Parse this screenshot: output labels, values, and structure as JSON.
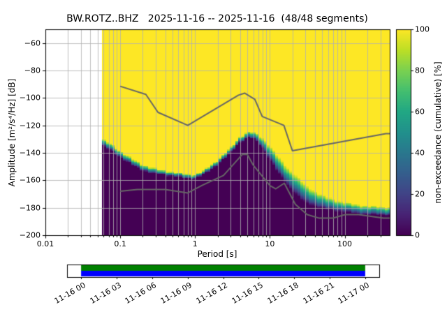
{
  "title": "BW.ROTZ..BHZ   2025-11-16 -- 2025-11-16  (48/48 segments)",
  "axes": {
    "xlabel": "Period [s]",
    "ylabel": "Amplitude [m²/s⁴/Hz] [dB]",
    "grid_color": "#b0b0b0",
    "x_ticks": [
      {
        "value": 0.01,
        "label": "0.01"
      },
      {
        "value": 0.1,
        "label": "0.1"
      },
      {
        "value": 1,
        "label": "1"
      },
      {
        "value": 10,
        "label": "10"
      },
      {
        "value": 100,
        "label": "100"
      }
    ],
    "y_ticks": [
      {
        "v": -200,
        "label": "−200"
      },
      {
        "v": -180,
        "label": "−180"
      },
      {
        "v": -160,
        "label": "−160"
      },
      {
        "v": -140,
        "label": "−140"
      },
      {
        "v": -120,
        "label": "−120"
      },
      {
        "v": -100,
        "label": "−100"
      },
      {
        "v": -80,
        "label": "−80"
      },
      {
        "v": -60,
        "label": "−60"
      }
    ]
  },
  "colorbar": {
    "label": "non-exceedance (cumulative) [%]",
    "ticks": [
      0,
      20,
      40,
      60,
      80,
      100
    ],
    "colormap": "viridis",
    "stops": [
      [
        0.0,
        "#440154"
      ],
      [
        0.1,
        "#482475"
      ],
      [
        0.2,
        "#414487"
      ],
      [
        0.3,
        "#355f8d"
      ],
      [
        0.4,
        "#2a788e"
      ],
      [
        0.5,
        "#21918c"
      ],
      [
        0.6,
        "#22a884"
      ],
      [
        0.7,
        "#44bf70"
      ],
      [
        0.8,
        "#7ad151"
      ],
      [
        0.9,
        "#bddf26"
      ],
      [
        1.0,
        "#fde725"
      ]
    ]
  },
  "timeline": {
    "labels": [
      "11-16 00",
      "11-16 03",
      "11-16 06",
      "11-16 09",
      "11-16 12",
      "11-16 15",
      "11-16 18",
      "11-16 21",
      "11-17 00"
    ],
    "coverage_fraction": [
      0.045,
      0.955
    ],
    "colors": {
      "top": "#008000",
      "bottom": "#0000ff"
    }
  },
  "chart_data": {
    "type": "heatmap",
    "mode": "PPSD cumulative non-exceedance percentage; yellow = 100%, dark purple = 0%",
    "title": "BW.ROTZ..BHZ   2025-11-16 -- 2025-11-16  (48/48 segments)",
    "xlabel": "Period [s]",
    "ylabel": "Amplitude [m²/s⁴/Hz] [dB]",
    "xscale": "log",
    "xlim": [
      0.01,
      400
    ],
    "ylim": [
      -200,
      -50
    ],
    "colorbar_label": "non-exceedance (cumulative) [%]",
    "colorbar_range": [
      0,
      100
    ],
    "data_period_min_s": 0.057,
    "psd_mode_curve_db": [
      [
        0.057,
        -132.5
      ],
      [
        0.08,
        -137
      ],
      [
        0.1,
        -141
      ],
      [
        0.15,
        -147
      ],
      [
        0.2,
        -150.5
      ],
      [
        0.3,
        -153.5
      ],
      [
        0.5,
        -155.5
      ],
      [
        0.8,
        -157.5
      ],
      [
        1.0,
        -157.5
      ],
      [
        1.3,
        -154.5
      ],
      [
        2,
        -147
      ],
      [
        3,
        -138.5
      ],
      [
        4,
        -130.5
      ],
      [
        5,
        -127
      ],
      [
        6,
        -127.5
      ],
      [
        8,
        -133
      ],
      [
        10,
        -140
      ],
      [
        13,
        -149
      ],
      [
        16,
        -155
      ],
      [
        20,
        -161
      ],
      [
        30,
        -170
      ],
      [
        45,
        -174.5
      ],
      [
        60,
        -177
      ],
      [
        80,
        -178.5
      ],
      [
        100,
        -179.5
      ],
      [
        150,
        -181
      ],
      [
        250,
        -182
      ],
      [
        400,
        -182.5
      ]
    ],
    "transition_width_db": [
      [
        0.057,
        5
      ],
      [
        0.3,
        4
      ],
      [
        1,
        3
      ],
      [
        2,
        3.5
      ],
      [
        4,
        4
      ],
      [
        6,
        5
      ],
      [
        8,
        7
      ],
      [
        10,
        10
      ],
      [
        15,
        13
      ],
      [
        25,
        14
      ],
      [
        40,
        11
      ],
      [
        70,
        8
      ],
      [
        100,
        7
      ],
      [
        400,
        6
      ]
    ],
    "noise_models": {
      "upper_name": "NHNM",
      "lower_name": "NLNM",
      "color": "#666666",
      "nhnm": [
        [
          0.1,
          -91.5
        ],
        [
          0.22,
          -97.4
        ],
        [
          0.32,
          -110.5
        ],
        [
          0.8,
          -120
        ],
        [
          3.8,
          -98
        ],
        [
          4.6,
          -96.5
        ],
        [
          6.3,
          -101
        ],
        [
          7.9,
          -113.5
        ],
        [
          15.4,
          -120
        ],
        [
          20,
          -138.5
        ],
        [
          354.8,
          -126
        ],
        [
          400,
          -126
        ]
      ],
      "nlnm": [
        [
          0.1,
          -168
        ],
        [
          0.17,
          -166.7
        ],
        [
          0.4,
          -166.7
        ],
        [
          0.8,
          -169.2
        ],
        [
          1.24,
          -163.7
        ],
        [
          2.4,
          -156.5
        ],
        [
          4.3,
          -141.1
        ],
        [
          5,
          -141.1
        ],
        [
          6,
          -149
        ],
        [
          10,
          -163.8
        ],
        [
          12,
          -166.2
        ],
        [
          15.6,
          -162.1
        ],
        [
          21.9,
          -177.5
        ],
        [
          31.6,
          -185
        ],
        [
          45,
          -187.5
        ],
        [
          70,
          -187.5
        ],
        [
          101,
          -185
        ],
        [
          154,
          -185
        ],
        [
          328,
          -187.5
        ],
        [
          400,
          -187.5
        ]
      ]
    }
  }
}
